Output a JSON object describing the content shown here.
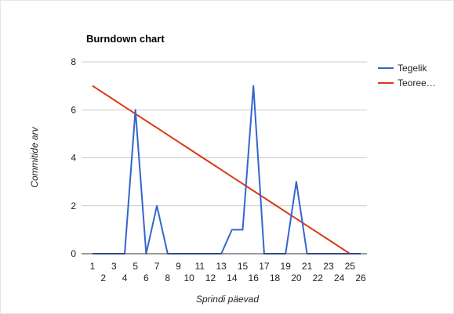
{
  "chart_data": {
    "type": "line",
    "title": "Burndown chart",
    "xlabel": "Sprindi päevad",
    "ylabel": "Commitide arv",
    "x": [
      1,
      2,
      3,
      4,
      5,
      6,
      7,
      8,
      9,
      10,
      11,
      12,
      13,
      14,
      15,
      16,
      17,
      18,
      19,
      20,
      21,
      22,
      23,
      24,
      25,
      26
    ],
    "xlim": [
      1,
      26
    ],
    "ylim": [
      0,
      8
    ],
    "yticks": [
      0,
      2,
      4,
      6,
      8
    ],
    "grid": true,
    "legend_position": "right",
    "series": [
      {
        "name": "Tegelik",
        "color": "#3366cc",
        "values": [
          0,
          0,
          0,
          0,
          6,
          0,
          2,
          0,
          0,
          0,
          0,
          0,
          0,
          1,
          1,
          7,
          0,
          0,
          0,
          3,
          0,
          0,
          0,
          0,
          0,
          0
        ]
      },
      {
        "name": "Teoree…",
        "color": "#dc3912",
        "values": [
          7,
          6.708,
          6.417,
          6.125,
          5.833,
          5.542,
          5.25,
          4.958,
          4.667,
          4.375,
          4.083,
          3.792,
          3.5,
          3.208,
          2.917,
          2.625,
          2.333,
          2.042,
          1.75,
          1.458,
          1.167,
          0.875,
          0.583,
          0.292,
          0,
          0
        ]
      }
    ]
  }
}
